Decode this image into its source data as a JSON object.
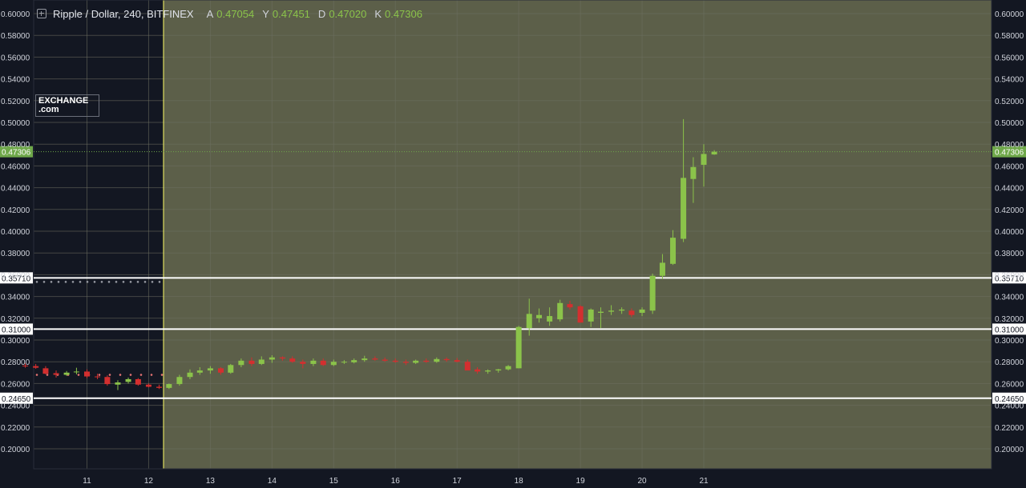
{
  "legend": {
    "symbol": "Ripple / Dollar, 240, BITFINEX",
    "o_label": "A",
    "o_value": "0.47054",
    "h_label": "Y",
    "h_value": "0.47451",
    "l_label": "D",
    "l_value": "0.47020",
    "c_label": "K",
    "c_value": "0.47306"
  },
  "logo": {
    "line1": "EXCHANGE",
    "line2": ".com"
  },
  "colors": {
    "background": "#131722",
    "highlight": "#5c5f49",
    "up": "#8bc34a",
    "down": "#d32f2f",
    "level_line": "#ffffff",
    "cursor": "#ffff66",
    "last_price": "#6fa84a"
  },
  "chart_data": {
    "type": "candlestick",
    "symbol": "Ripple / Dollar",
    "interval": "240",
    "exchange": "BITFINEX",
    "ylim": [
      0.185,
      0.6049
    ],
    "grid": true,
    "y_ticks": [
      "0.20000",
      "0.22000",
      "0.24000",
      "0.26000",
      "0.28000",
      "0.30000",
      "0.32000",
      "0.34000",
      "0.36000",
      "0.38000",
      "0.40000",
      "0.42000",
      "0.44000",
      "0.46000",
      "0.48000",
      "0.50000",
      "0.52000",
      "0.54000",
      "0.56000",
      "0.58000",
      "0.60000"
    ],
    "x_ticks": [
      "11",
      "12",
      "13",
      "14",
      "15",
      "16",
      "17",
      "18",
      "19",
      "20",
      "21"
    ],
    "last_price": "0.47306",
    "levels": [
      "0.35710",
      "0.31000",
      "0.24650"
    ],
    "candles": [
      {
        "d": 10.0,
        "o": 0.2765,
        "h": 0.2785,
        "l": 0.2745,
        "c": 0.276
      },
      {
        "d": 10.17,
        "o": 0.276,
        "h": 0.278,
        "l": 0.2735,
        "c": 0.2745
      },
      {
        "d": 10.33,
        "o": 0.274,
        "h": 0.276,
        "l": 0.2685,
        "c": 0.269
      },
      {
        "d": 10.5,
        "o": 0.2695,
        "h": 0.272,
        "l": 0.2655,
        "c": 0.268
      },
      {
        "d": 10.67,
        "o": 0.268,
        "h": 0.2715,
        "l": 0.267,
        "c": 0.27
      },
      {
        "d": 10.83,
        "o": 0.2705,
        "h": 0.2745,
        "l": 0.2685,
        "c": 0.271
      },
      {
        "d": 11.0,
        "o": 0.271,
        "h": 0.273,
        "l": 0.265,
        "c": 0.2665
      },
      {
        "d": 11.17,
        "o": 0.2665,
        "h": 0.269,
        "l": 0.264,
        "c": 0.266
      },
      {
        "d": 11.33,
        "o": 0.266,
        "h": 0.2675,
        "l": 0.258,
        "c": 0.2595
      },
      {
        "d": 11.5,
        "o": 0.259,
        "h": 0.263,
        "l": 0.254,
        "c": 0.261
      },
      {
        "d": 11.67,
        "o": 0.2615,
        "h": 0.2655,
        "l": 0.26,
        "c": 0.264
      },
      {
        "d": 11.83,
        "o": 0.264,
        "h": 0.265,
        "l": 0.258,
        "c": 0.259
      },
      {
        "d": 12.0,
        "o": 0.259,
        "h": 0.26,
        "l": 0.2565,
        "c": 0.257
      },
      {
        "d": 12.17,
        "o": 0.257,
        "h": 0.259,
        "l": 0.255,
        "c": 0.256
      },
      {
        "d": 12.33,
        "o": 0.256,
        "h": 0.26,
        "l": 0.255,
        "c": 0.2595
      },
      {
        "d": 12.5,
        "o": 0.2595,
        "h": 0.268,
        "l": 0.258,
        "c": 0.266
      },
      {
        "d": 12.67,
        "o": 0.266,
        "h": 0.273,
        "l": 0.264,
        "c": 0.27
      },
      {
        "d": 12.83,
        "o": 0.27,
        "h": 0.275,
        "l": 0.268,
        "c": 0.272
      },
      {
        "d": 13.0,
        "o": 0.272,
        "h": 0.276,
        "l": 0.269,
        "c": 0.274
      },
      {
        "d": 13.17,
        "o": 0.274,
        "h": 0.275,
        "l": 0.268,
        "c": 0.27
      },
      {
        "d": 13.33,
        "o": 0.27,
        "h": 0.278,
        "l": 0.269,
        "c": 0.277
      },
      {
        "d": 13.5,
        "o": 0.277,
        "h": 0.283,
        "l": 0.275,
        "c": 0.281
      },
      {
        "d": 13.67,
        "o": 0.281,
        "h": 0.284,
        "l": 0.276,
        "c": 0.278
      },
      {
        "d": 13.83,
        "o": 0.278,
        "h": 0.285,
        "l": 0.277,
        "c": 0.282
      },
      {
        "d": 14.0,
        "o": 0.282,
        "h": 0.286,
        "l": 0.279,
        "c": 0.284
      },
      {
        "d": 14.17,
        "o": 0.284,
        "h": 0.285,
        "l": 0.281,
        "c": 0.283
      },
      {
        "d": 14.33,
        "o": 0.283,
        "h": 0.285,
        "l": 0.279,
        "c": 0.28
      },
      {
        "d": 14.5,
        "o": 0.28,
        "h": 0.282,
        "l": 0.274,
        "c": 0.278
      },
      {
        "d": 14.67,
        "o": 0.278,
        "h": 0.283,
        "l": 0.276,
        "c": 0.281
      },
      {
        "d": 14.83,
        "o": 0.281,
        "h": 0.283,
        "l": 0.276,
        "c": 0.277
      },
      {
        "d": 15.0,
        "o": 0.277,
        "h": 0.282,
        "l": 0.276,
        "c": 0.28
      },
      {
        "d": 15.17,
        "o": 0.28,
        "h": 0.2815,
        "l": 0.278,
        "c": 0.28
      },
      {
        "d": 15.33,
        "o": 0.2795,
        "h": 0.283,
        "l": 0.2785,
        "c": 0.2815
      },
      {
        "d": 15.5,
        "o": 0.2815,
        "h": 0.2855,
        "l": 0.28,
        "c": 0.283
      },
      {
        "d": 15.67,
        "o": 0.283,
        "h": 0.285,
        "l": 0.281,
        "c": 0.282
      },
      {
        "d": 15.83,
        "o": 0.282,
        "h": 0.284,
        "l": 0.28,
        "c": 0.281
      },
      {
        "d": 16.0,
        "o": 0.281,
        "h": 0.283,
        "l": 0.279,
        "c": 0.28
      },
      {
        "d": 16.17,
        "o": 0.28,
        "h": 0.282,
        "l": 0.277,
        "c": 0.279
      },
      {
        "d": 16.33,
        "o": 0.279,
        "h": 0.282,
        "l": 0.278,
        "c": 0.281
      },
      {
        "d": 16.5,
        "o": 0.281,
        "h": 0.283,
        "l": 0.279,
        "c": 0.28
      },
      {
        "d": 16.67,
        "o": 0.28,
        "h": 0.284,
        "l": 0.279,
        "c": 0.2825
      },
      {
        "d": 16.83,
        "o": 0.2825,
        "h": 0.284,
        "l": 0.28,
        "c": 0.2815
      },
      {
        "d": 17.0,
        "o": 0.2815,
        "h": 0.2835,
        "l": 0.2795,
        "c": 0.28
      },
      {
        "d": 17.17,
        "o": 0.28,
        "h": 0.282,
        "l": 0.273,
        "c": 0.272
      },
      {
        "d": 17.33,
        "o": 0.273,
        "h": 0.275,
        "l": 0.269,
        "c": 0.271
      },
      {
        "d": 17.5,
        "o": 0.271,
        "h": 0.273,
        "l": 0.269,
        "c": 0.272
      },
      {
        "d": 17.67,
        "o": 0.272,
        "h": 0.2735,
        "l": 0.27,
        "c": 0.273
      },
      {
        "d": 17.83,
        "o": 0.273,
        "h": 0.277,
        "l": 0.272,
        "c": 0.276
      },
      {
        "d": 18.0,
        "o": 0.274,
        "h": 0.313,
        "l": 0.274,
        "c": 0.312
      },
      {
        "d": 18.17,
        "o": 0.311,
        "h": 0.338,
        "l": 0.304,
        "c": 0.324
      },
      {
        "d": 18.33,
        "o": 0.32,
        "h": 0.329,
        "l": 0.316,
        "c": 0.323
      },
      {
        "d": 18.5,
        "o": 0.317,
        "h": 0.33,
        "l": 0.313,
        "c": 0.322
      },
      {
        "d": 18.67,
        "o": 0.319,
        "h": 0.337,
        "l": 0.317,
        "c": 0.334
      },
      {
        "d": 18.83,
        "o": 0.333,
        "h": 0.336,
        "l": 0.328,
        "c": 0.33
      },
      {
        "d": 19.0,
        "o": 0.331,
        "h": 0.332,
        "l": 0.316,
        "c": 0.316
      },
      {
        "d": 19.17,
        "o": 0.317,
        "h": 0.329,
        "l": 0.312,
        "c": 0.328
      },
      {
        "d": 19.33,
        "o": 0.325,
        "h": 0.33,
        "l": 0.311,
        "c": 0.326
      },
      {
        "d": 19.5,
        "o": 0.326,
        "h": 0.332,
        "l": 0.323,
        "c": 0.327
      },
      {
        "d": 19.67,
        "o": 0.327,
        "h": 0.33,
        "l": 0.324,
        "c": 0.328
      },
      {
        "d": 19.83,
        "o": 0.327,
        "h": 0.329,
        "l": 0.321,
        "c": 0.323
      },
      {
        "d": 20.0,
        "o": 0.325,
        "h": 0.33,
        "l": 0.322,
        "c": 0.328
      },
      {
        "d": 20.17,
        "o": 0.327,
        "h": 0.361,
        "l": 0.324,
        "c": 0.359
      },
      {
        "d": 20.33,
        "o": 0.359,
        "h": 0.379,
        "l": 0.356,
        "c": 0.371
      },
      {
        "d": 20.5,
        "o": 0.37,
        "h": 0.401,
        "l": 0.369,
        "c": 0.394
      },
      {
        "d": 20.67,
        "o": 0.393,
        "h": 0.503,
        "l": 0.39,
        "c": 0.449
      },
      {
        "d": 20.83,
        "o": 0.448,
        "h": 0.468,
        "l": 0.426,
        "c": 0.459
      },
      {
        "d": 21.0,
        "o": 0.461,
        "h": 0.48,
        "l": 0.441,
        "c": 0.471
      },
      {
        "d": 21.17,
        "o": 0.47054,
        "h": 0.47451,
        "l": 0.4702,
        "c": 0.47306
      }
    ]
  }
}
